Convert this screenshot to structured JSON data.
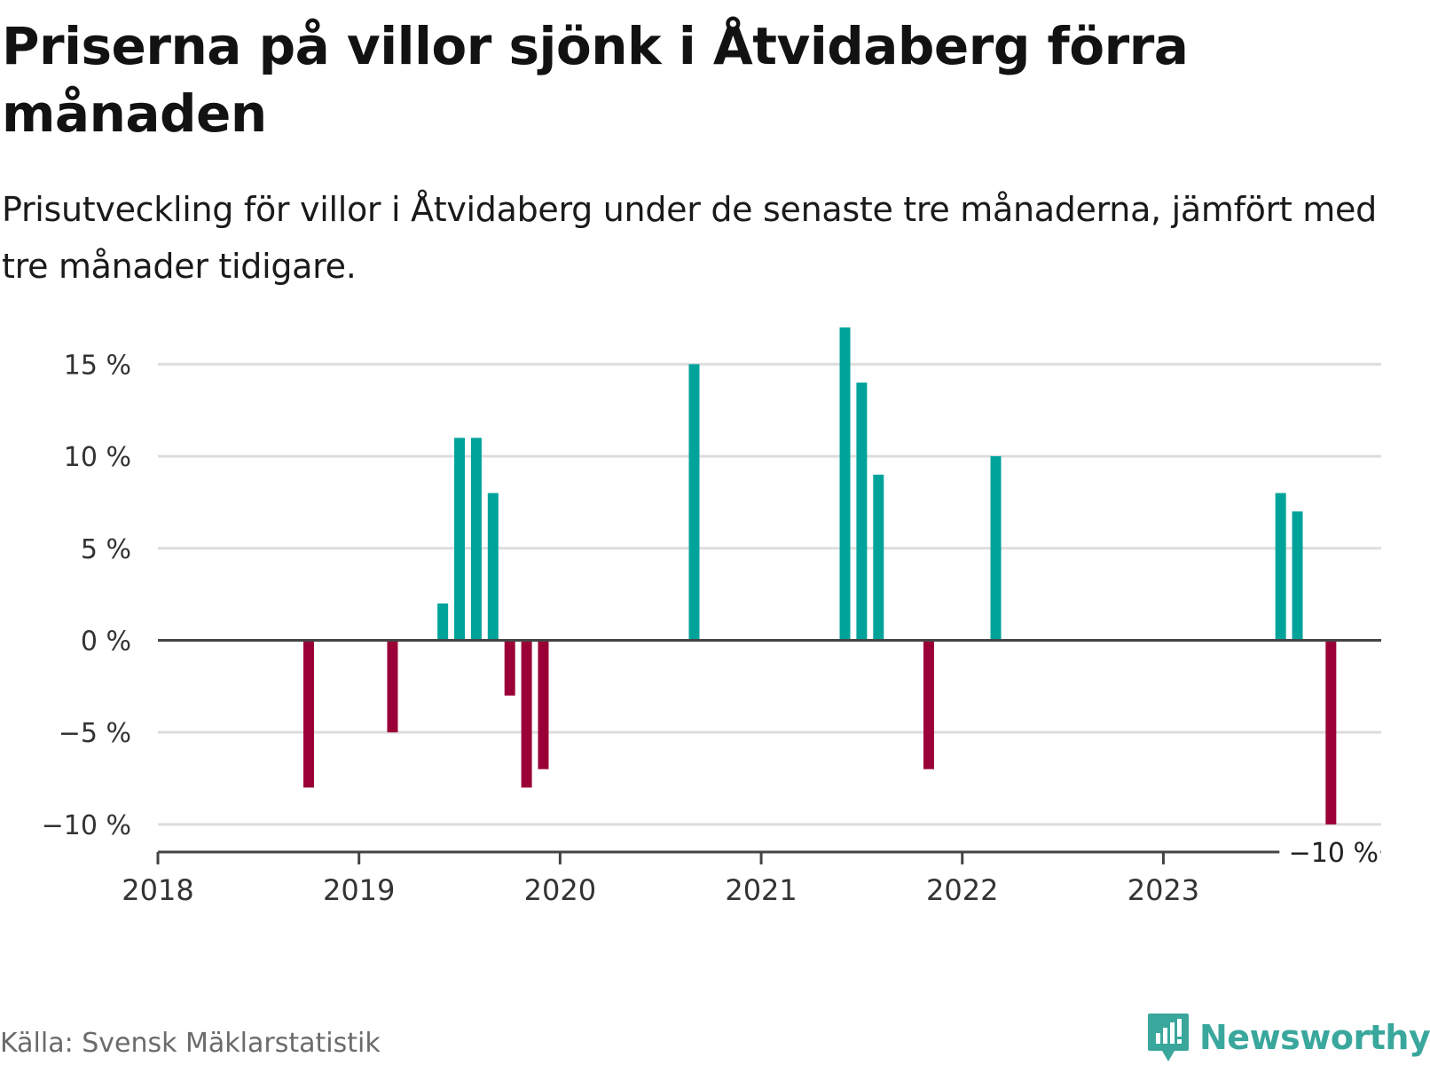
{
  "title": "Priserna på villor sjönk i Åtvidaberg förra månaden",
  "subtitle": "Prisutveckling för villor i Åtvidaberg under de senaste tre månaderna, jämfört med tre månader tidigare.",
  "source": "Källa: Svensk Mäklarstatistik",
  "brand": {
    "name": "Newsworthy",
    "icon": "newsworthy-logo-icon",
    "color": "#3aa79d"
  },
  "colors": {
    "positive": "#00a39a",
    "negative": "#9a0037",
    "zero_line": "#444444",
    "grid": "#dddddd"
  },
  "chart_data": {
    "type": "bar",
    "x_unit": "month",
    "xlim": [
      "2018-01",
      "2024-02"
    ],
    "ylim": [
      -11.5,
      15.5
    ],
    "y_ticks": [
      -10,
      -5,
      0,
      5,
      10,
      15
    ],
    "y_tick_labels": [
      "−10 %",
      "−5 %",
      "0 %",
      "5 %",
      "10 %",
      "15 %"
    ],
    "x_ticks": [
      "2018-01",
      "2019-01",
      "2020-01",
      "2021-01",
      "2022-01",
      "2023-01"
    ],
    "x_tick_labels": [
      "2018",
      "2019",
      "2020",
      "2021",
      "2022",
      "2023"
    ],
    "grid": true,
    "x": [
      "2018-10",
      "2019-03",
      "2019-06",
      "2019-07",
      "2019-08",
      "2019-09",
      "2019-10",
      "2019-11",
      "2019-12",
      "2020-09",
      "2021-06",
      "2021-07",
      "2021-08",
      "2021-11",
      "2022-03",
      "2023-08",
      "2023-09",
      "2023-11"
    ],
    "values": [
      -8,
      -5,
      2,
      11,
      11,
      8,
      -3,
      -8,
      -7,
      15,
      17,
      14,
      9,
      -7,
      10,
      8,
      7,
      -10
    ],
    "annotation": {
      "x": "2023-11",
      "value": -10,
      "label": "−10 %"
    }
  }
}
